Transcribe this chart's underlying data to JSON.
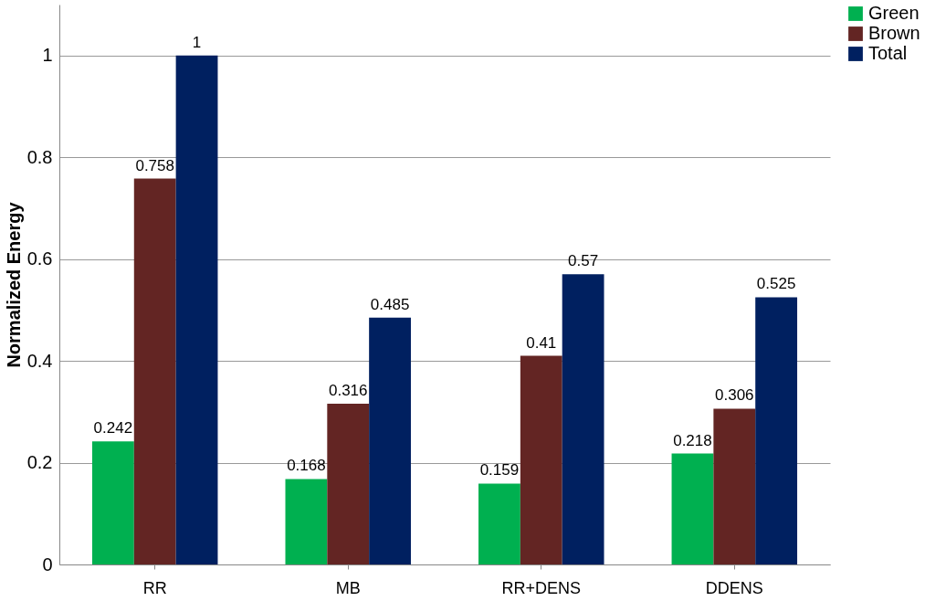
{
  "chart_data": {
    "type": "bar",
    "ylabel": "Normalized Energy",
    "categories": [
      "RR",
      "MB",
      "RR+DENS",
      "DDENS"
    ],
    "series": [
      {
        "name": "Green",
        "color": "#00b050",
        "values": [
          0.242,
          0.168,
          0.159,
          0.218
        ]
      },
      {
        "name": "Brown",
        "color": "#632523",
        "values": [
          0.758,
          0.316,
          0.41,
          0.306
        ]
      },
      {
        "name": "Total",
        "color": "#002060",
        "values": [
          1,
          0.485,
          0.57,
          0.525
        ]
      }
    ],
    "ylim": [
      0,
      1.1
    ],
    "yticks": [
      0,
      0.2,
      0.4,
      0.6,
      0.8,
      1
    ],
    "grid": "y",
    "legend": "right",
    "data_labels": true
  }
}
